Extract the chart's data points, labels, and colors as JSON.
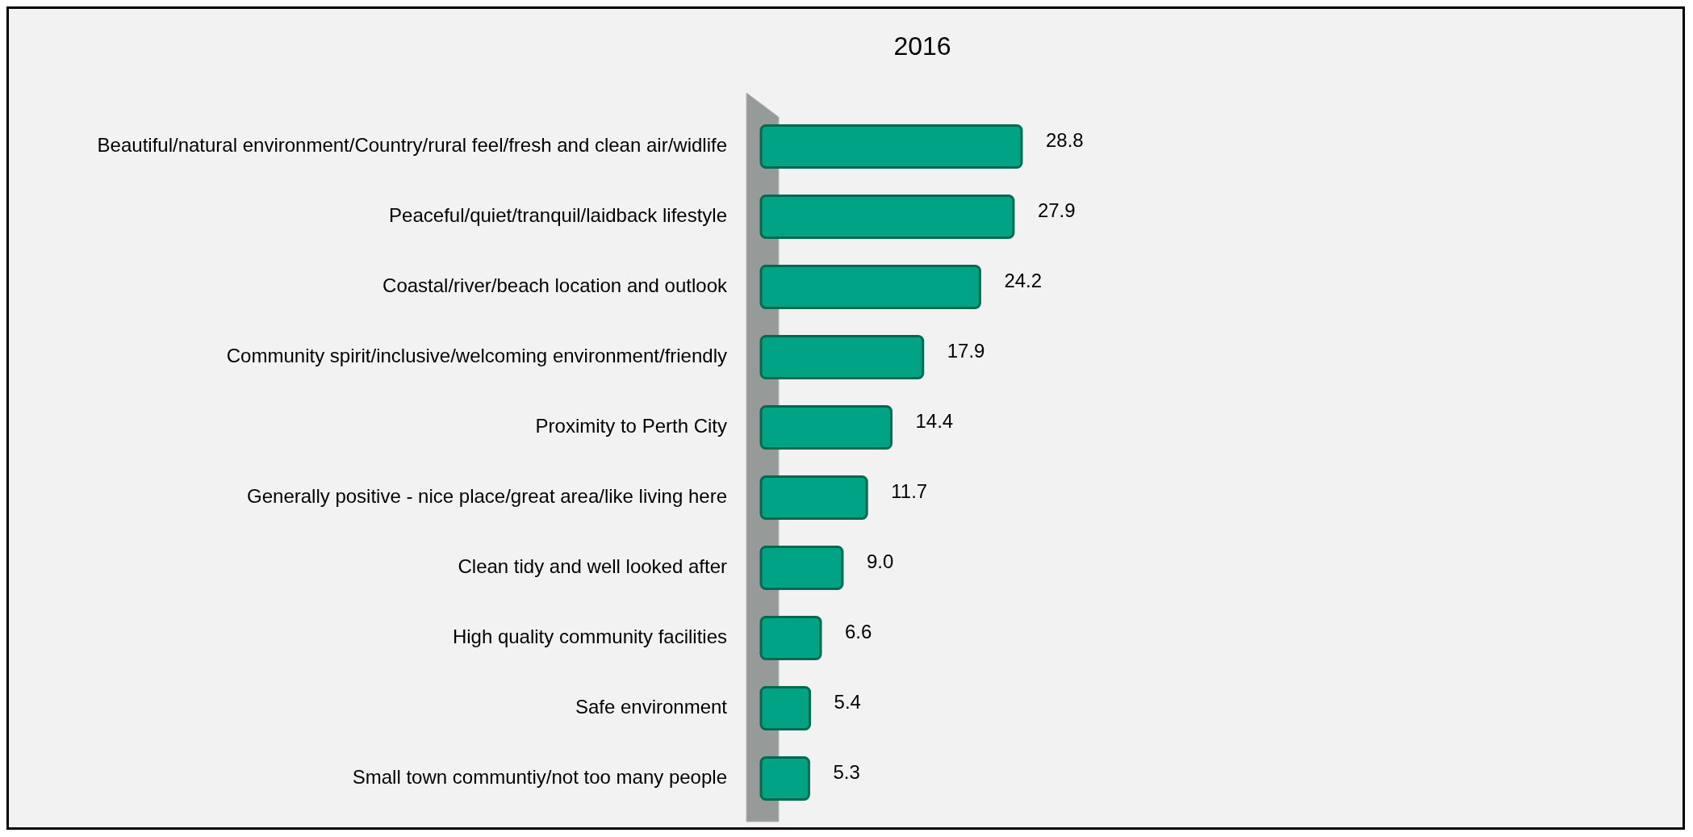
{
  "chart_data": {
    "type": "bar",
    "orientation": "horizontal",
    "title": "2016",
    "color": "#00a383",
    "value_labels": [
      "28.8",
      "27.9",
      "24.2",
      "17.9",
      "14.4",
      "11.7",
      "9.0",
      "6.6",
      "5.4",
      "5.3"
    ],
    "categories": [
      "Beautiful/natural environment/Country/rural feel/fresh and clean air/widlife",
      "Peaceful/quiet/tranquil/laidback lifestyle",
      "Coastal/river/beach location  and outlook",
      "Community spirit/inclusive/welcoming environment/friendly",
      "Proximity to Perth City",
      "Generally positive - nice place/great area/like living here",
      "Clean tidy and well looked after",
      "High quality community facilities",
      "Safe environment",
      "Small town communtiy/not too many people"
    ],
    "values": [
      28.8,
      27.9,
      24.2,
      17.9,
      14.4,
      11.7,
      9.0,
      6.6,
      5.4,
      5.3
    ]
  }
}
